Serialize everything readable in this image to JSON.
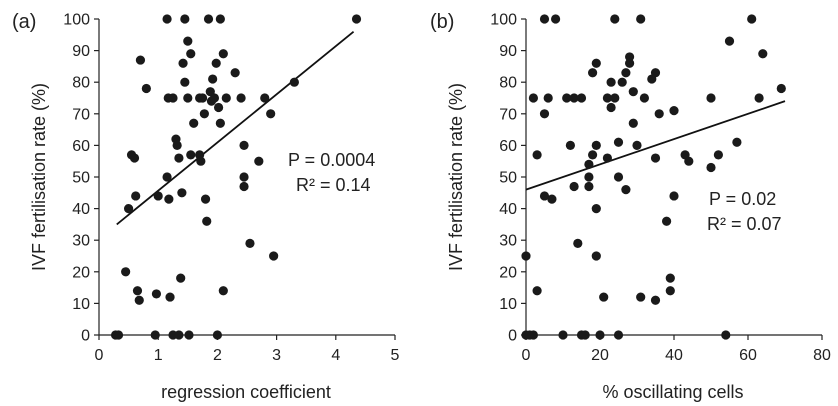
{
  "chart_data": [
    {
      "type": "scatter",
      "panel_label": "(a)",
      "xlabel": "regression coefficient",
      "ylabel": "IVF fertilisation rate (%)",
      "xlim": [
        0,
        5
      ],
      "ylim": [
        0,
        100
      ],
      "xticks": [
        "0",
        "1",
        "2",
        "3",
        "4",
        "5"
      ],
      "yticks": [
        "0",
        "10",
        "20",
        "30",
        "40",
        "50",
        "60",
        "70",
        "80",
        "90",
        "100"
      ],
      "annotations": [
        "P = 0.0004",
        "R² = 0.14"
      ],
      "fit_line": {
        "x": [
          0.3,
          4.3
        ],
        "y": [
          35,
          96
        ]
      },
      "points": [
        [
          0.28,
          0
        ],
        [
          0.33,
          0
        ],
        [
          0.45,
          20
        ],
        [
          0.5,
          40
        ],
        [
          0.55,
          57
        ],
        [
          0.6,
          56
        ],
        [
          0.62,
          44
        ],
        [
          0.65,
          14
        ],
        [
          0.68,
          11
        ],
        [
          0.7,
          87
        ],
        [
          0.8,
          78
        ],
        [
          0.95,
          0
        ],
        [
          0.97,
          13
        ],
        [
          1.0,
          44
        ],
        [
          1.15,
          100
        ],
        [
          1.15,
          50
        ],
        [
          1.17,
          75
        ],
        [
          1.18,
          43
        ],
        [
          1.2,
          12
        ],
        [
          1.25,
          0
        ],
        [
          1.25,
          75
        ],
        [
          1.3,
          62
        ],
        [
          1.32,
          60
        ],
        [
          1.35,
          0
        ],
        [
          1.35,
          56
        ],
        [
          1.38,
          18
        ],
        [
          1.4,
          45
        ],
        [
          1.42,
          86
        ],
        [
          1.45,
          80
        ],
        [
          1.45,
          100
        ],
        [
          1.5,
          75
        ],
        [
          1.5,
          93
        ],
        [
          1.52,
          0
        ],
        [
          1.55,
          89
        ],
        [
          1.55,
          57
        ],
        [
          1.6,
          67
        ],
        [
          1.7,
          75
        ],
        [
          1.7,
          57
        ],
        [
          1.72,
          55
        ],
        [
          1.75,
          75
        ],
        [
          1.78,
          70
        ],
        [
          1.8,
          43
        ],
        [
          1.82,
          36
        ],
        [
          1.85,
          100
        ],
        [
          1.88,
          77
        ],
        [
          1.9,
          74
        ],
        [
          1.92,
          81
        ],
        [
          1.95,
          75
        ],
        [
          1.98,
          86
        ],
        [
          2.0,
          0
        ],
        [
          2.02,
          72
        ],
        [
          2.05,
          100
        ],
        [
          2.05,
          67
        ],
        [
          2.1,
          89
        ],
        [
          2.1,
          14
        ],
        [
          2.15,
          75
        ],
        [
          2.3,
          83
        ],
        [
          2.4,
          75
        ],
        [
          2.45,
          60
        ],
        [
          2.45,
          47
        ],
        [
          2.45,
          50
        ],
        [
          2.55,
          29
        ],
        [
          2.7,
          55
        ],
        [
          2.8,
          75
        ],
        [
          2.9,
          70
        ],
        [
          2.95,
          25
        ],
        [
          3.3,
          80
        ],
        [
          4.35,
          100
        ]
      ]
    },
    {
      "type": "scatter",
      "panel_label": "(b)",
      "xlabel": "% oscillating cells",
      "ylabel": "IVF fertilisation rate (%)",
      "xlim": [
        0,
        80
      ],
      "ylim": [
        0,
        100
      ],
      "xticks": [
        "0",
        "20",
        "40",
        "60",
        "80"
      ],
      "yticks": [
        "0",
        "10",
        "20",
        "30",
        "40",
        "50",
        "60",
        "70",
        "80",
        "90",
        "100"
      ],
      "annotations": [
        "P = 0.02",
        "R² = 0.07"
      ],
      "fit_line": {
        "x": [
          0,
          70
        ],
        "y": [
          46,
          74
        ]
      },
      "points": [
        [
          0,
          0
        ],
        [
          0,
          25
        ],
        [
          1,
          0
        ],
        [
          2,
          75
        ],
        [
          2,
          0
        ],
        [
          3,
          14
        ],
        [
          3,
          57
        ],
        [
          5,
          44
        ],
        [
          5,
          70
        ],
        [
          5,
          100
        ],
        [
          6,
          75
        ],
        [
          7,
          43
        ],
        [
          8,
          100
        ],
        [
          10,
          0
        ],
        [
          11,
          75
        ],
        [
          12,
          60
        ],
        [
          13,
          75
        ],
        [
          13,
          47
        ],
        [
          14,
          29
        ],
        [
          15,
          75
        ],
        [
          15,
          0
        ],
        [
          16,
          0
        ],
        [
          17,
          54
        ],
        [
          17,
          50
        ],
        [
          17,
          47
        ],
        [
          18,
          57
        ],
        [
          18,
          83
        ],
        [
          19,
          86
        ],
        [
          19,
          60
        ],
        [
          19,
          25
        ],
        [
          19,
          40
        ],
        [
          20,
          0
        ],
        [
          21,
          12
        ],
        [
          22,
          56
        ],
        [
          22,
          75
        ],
        [
          23,
          80
        ],
        [
          23,
          72
        ],
        [
          24,
          75
        ],
        [
          24,
          100
        ],
        [
          25,
          0
        ],
        [
          25,
          61
        ],
        [
          25,
          50
        ],
        [
          26,
          80
        ],
        [
          27,
          46
        ],
        [
          27,
          83
        ],
        [
          28,
          86
        ],
        [
          28,
          88
        ],
        [
          29,
          77
        ],
        [
          29,
          67
        ],
        [
          30,
          60
        ],
        [
          31,
          100
        ],
        [
          31,
          12
        ],
        [
          32,
          75
        ],
        [
          34,
          81
        ],
        [
          35,
          83
        ],
        [
          35,
          56
        ],
        [
          35,
          11
        ],
        [
          36,
          70
        ],
        [
          38,
          36
        ],
        [
          39,
          18
        ],
        [
          39,
          14
        ],
        [
          40,
          71
        ],
        [
          40,
          44
        ],
        [
          43,
          57
        ],
        [
          44,
          55
        ],
        [
          50,
          75
        ],
        [
          50,
          53
        ],
        [
          52,
          57
        ],
        [
          54,
          0
        ],
        [
          55,
          93
        ],
        [
          57,
          61
        ],
        [
          61,
          100
        ],
        [
          63,
          75
        ],
        [
          64,
          89
        ],
        [
          69,
          78
        ]
      ]
    }
  ]
}
